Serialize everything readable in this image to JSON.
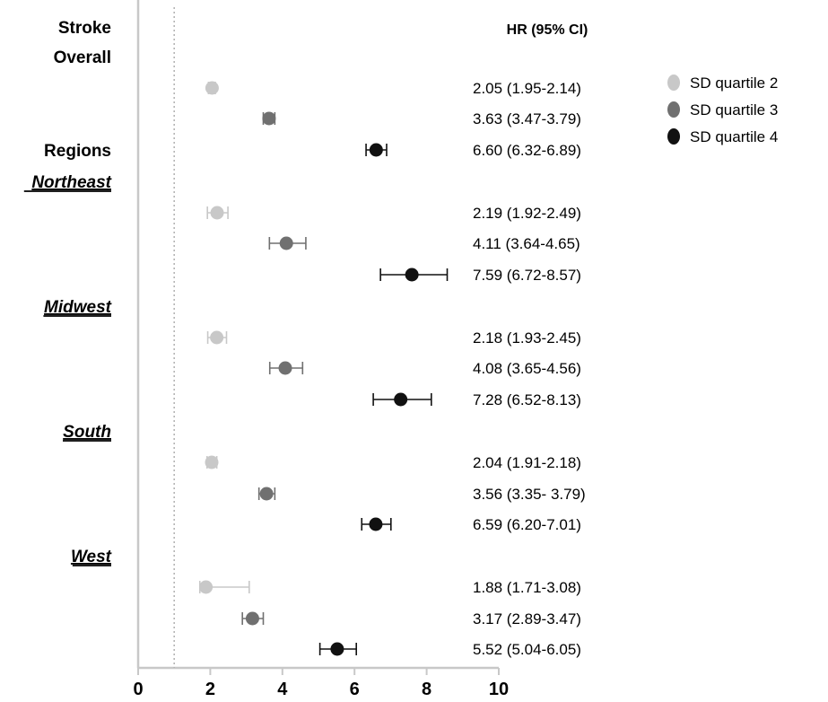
{
  "chart_data": {
    "type": "scatter",
    "subtype": "forest_plot",
    "outcome_label": "Stroke",
    "column_header": "HR (95% CI)",
    "reference_line": 1,
    "xlim": [
      0,
      10
    ],
    "x_ticks": [
      0,
      2,
      4,
      6,
      8,
      10
    ],
    "colors": {
      "SD quartile 2": "#c8c8c8",
      "SD quartile 3": "#707070",
      "SD quartile 4": "#111111"
    },
    "legend": {
      "position": "top-right",
      "entries": [
        "SD quartile 2",
        "SD quartile 3",
        "SD quartile 4"
      ]
    },
    "groups": [
      {
        "label": "Overall",
        "style": "bold",
        "rows": [
          {
            "series": "SD quartile 2",
            "hr": 2.05,
            "lo": 1.95,
            "hi": 2.14,
            "text": "2.05 (1.95-2.14)"
          },
          {
            "series": "SD quartile 3",
            "hr": 3.63,
            "lo": 3.47,
            "hi": 3.79,
            "text": "3.63 (3.47-3.79)"
          },
          {
            "series": "SD quartile 4",
            "hr": 6.6,
            "lo": 6.32,
            "hi": 6.89,
            "text": "6.60 (6.32-6.89)"
          }
        ]
      },
      {
        "label": "Northeast",
        "style": "italic-underline",
        "rows": [
          {
            "series": "SD quartile 2",
            "hr": 2.19,
            "lo": 1.92,
            "hi": 2.49,
            "text": "2.19 (1.92-2.49)"
          },
          {
            "series": "SD quartile 3",
            "hr": 4.11,
            "lo": 3.64,
            "hi": 4.65,
            "text": "4.11 (3.64-4.65)"
          },
          {
            "series": "SD quartile 4",
            "hr": 7.59,
            "lo": 6.72,
            "hi": 8.57,
            "text": "7.59 (6.72-8.57)"
          }
        ]
      },
      {
        "label": "Midwest",
        "style": "italic-underline",
        "rows": [
          {
            "series": "SD quartile 2",
            "hr": 2.18,
            "lo": 1.93,
            "hi": 2.45,
            "text": "2.18 (1.93-2.45)"
          },
          {
            "series": "SD quartile 3",
            "hr": 4.08,
            "lo": 3.65,
            "hi": 4.56,
            "text": "4.08 (3.65-4.56)"
          },
          {
            "series": "SD quartile 4",
            "hr": 7.28,
            "lo": 6.52,
            "hi": 8.13,
            "text": "7.28 (6.52-8.13)"
          }
        ]
      },
      {
        "label": "South",
        "style": "italic-underline",
        "rows": [
          {
            "series": "SD quartile 2",
            "hr": 2.04,
            "lo": 1.91,
            "hi": 2.18,
            "text": "2.04 (1.91-2.18)"
          },
          {
            "series": "SD quartile 3",
            "hr": 3.56,
            "lo": 3.35,
            "hi": 3.79,
            "text": "3.56 (3.35- 3.79)"
          },
          {
            "series": "SD quartile 4",
            "hr": 6.59,
            "lo": 6.2,
            "hi": 7.01,
            "text": "6.59 (6.20-7.01)"
          }
        ]
      },
      {
        "label": "West",
        "style": "italic-underline",
        "rows": [
          {
            "series": "SD quartile 2",
            "hr": 1.88,
            "lo": 1.71,
            "hi": 3.08,
            "text": "1.88 (1.71-3.08)"
          },
          {
            "series": "SD quartile 3",
            "hr": 3.17,
            "lo": 2.89,
            "hi": 3.47,
            "text": "3.17 (2.89-3.47)"
          },
          {
            "series": "SD quartile 4",
            "hr": 5.52,
            "lo": 5.04,
            "hi": 6.05,
            "text": "5.52 (5.04-6.05)"
          }
        ]
      }
    ],
    "section_label": "Regions"
  }
}
